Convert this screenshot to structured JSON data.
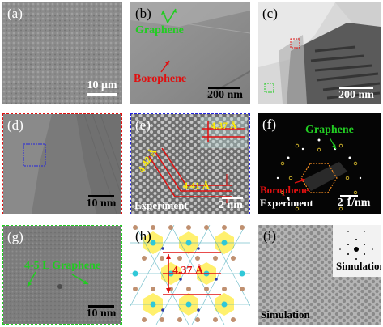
{
  "colors": {
    "graphene": "#22cc22",
    "borophene": "#e01010",
    "yellow": "#ffee00",
    "white": "#ffffff",
    "black": "#000000"
  },
  "panels": {
    "a": {
      "label": "(a)",
      "scale": "10 μm"
    },
    "b": {
      "label": "(b)",
      "scale": "200 nm",
      "graphene": "Graphene",
      "borophene": "Borophene"
    },
    "c": {
      "label": "(c)",
      "scale": "200 nm"
    },
    "d": {
      "label": "(d)",
      "scale": "10 nm"
    },
    "e": {
      "label": "(e)",
      "d1": "4.37 Å",
      "d2": "4.42 Å",
      "d3": "4.41 Å",
      "caption": "Experiment",
      "scale": "2 nm"
    },
    "f": {
      "label": "(f)",
      "graphene": "Graphene",
      "borophene": "Borophene",
      "caption": "Experiment",
      "scale": "2 1/nm"
    },
    "g": {
      "label": "(g)",
      "graphene": "4-5 L Graphene",
      "scale": "10 nm"
    },
    "h": {
      "label": "(h)",
      "d1": "4.37 Å"
    },
    "i": {
      "label": "(i)",
      "inset_caption": "Simulation",
      "caption": "Simulation"
    }
  }
}
